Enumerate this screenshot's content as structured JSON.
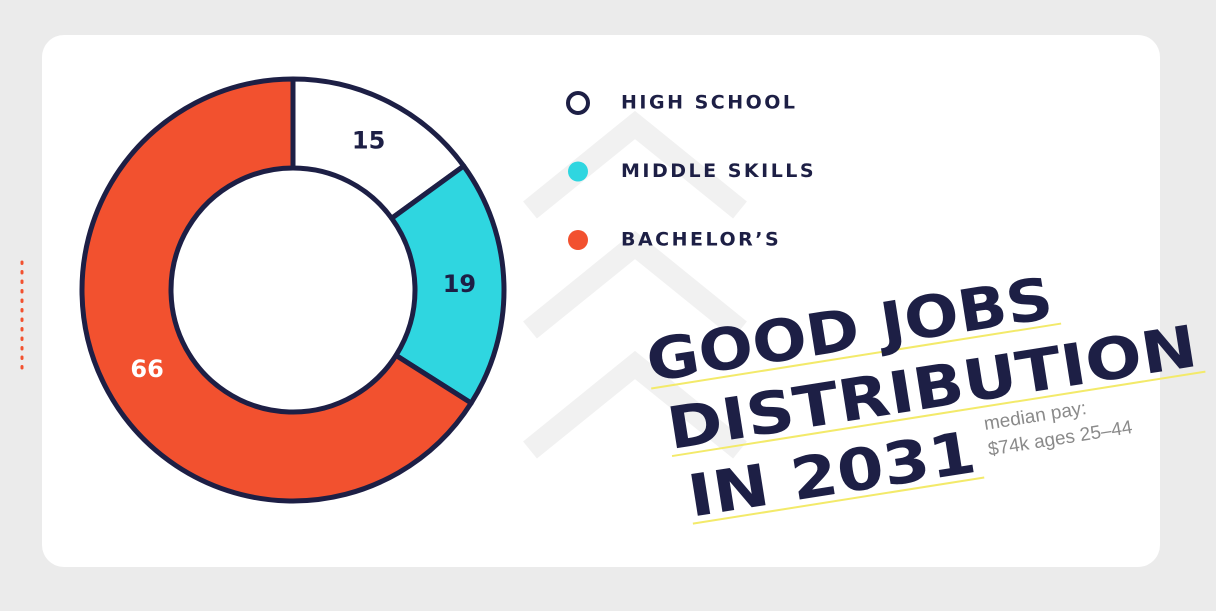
{
  "chart_data": {
    "type": "donut",
    "title_lines": [
      "GOOD JOBS",
      "DISTRIBUTION",
      "IN 2031"
    ],
    "annotation_lines": [
      "median pay:",
      "$74k ages 25–44"
    ],
    "categories": [
      "HIGH SCHOOL",
      "MIDDLE SKILLS",
      "BACHELOR’S"
    ],
    "values": [
      15,
      19,
      66
    ],
    "colors": [
      "#ffffff",
      "#2fd6e0",
      "#f2512f"
    ]
  }
}
